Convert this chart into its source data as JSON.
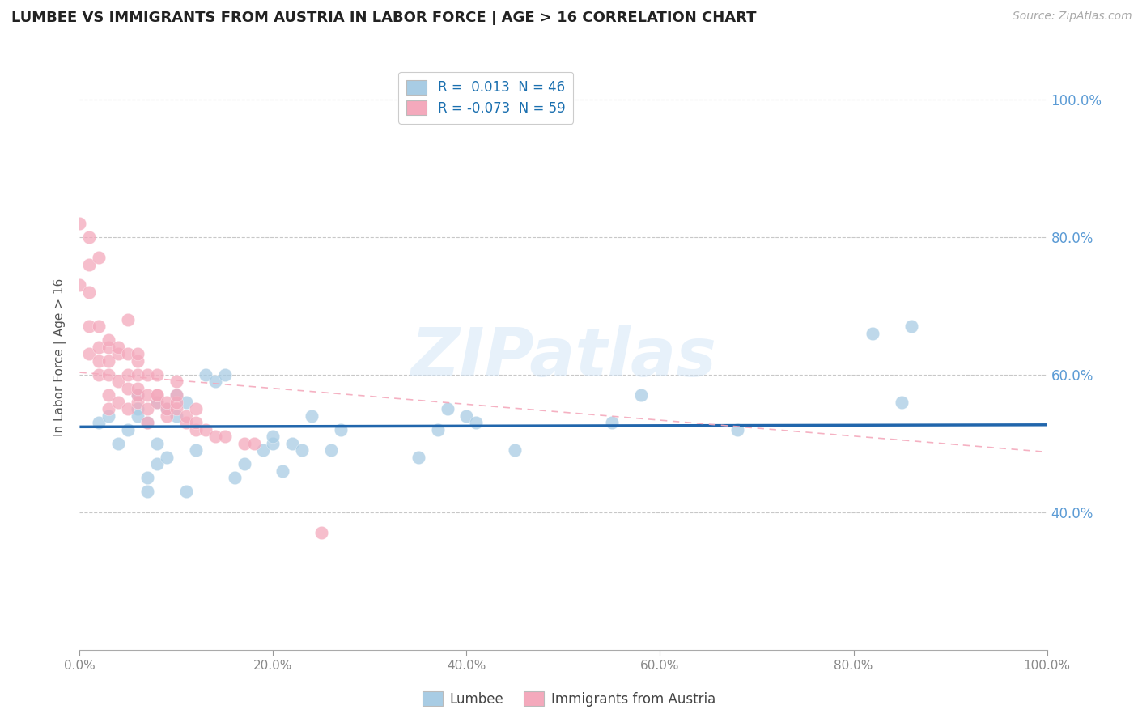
{
  "title": "LUMBEE VS IMMIGRANTS FROM AUSTRIA IN LABOR FORCE | AGE > 16 CORRELATION CHART",
  "source_text": "Source: ZipAtlas.com",
  "ylabel": "In Labor Force | Age > 16",
  "xlabel": "",
  "lumbee_R": 0.013,
  "lumbee_N": 46,
  "austria_R": -0.073,
  "austria_N": 59,
  "lumbee_color": "#a8cce4",
  "austria_color": "#f4a9bc",
  "lumbee_line_color": "#2166ac",
  "austria_line_color": "#f4a9bc",
  "background_color": "#ffffff",
  "grid_color": "#c8c8c8",
  "watermark": "ZIPatlas",
  "xlim": [
    0.0,
    1.0
  ],
  "ylim": [
    0.2,
    1.05
  ],
  "lumbee_x": [
    0.02,
    0.03,
    0.04,
    0.05,
    0.06,
    0.06,
    0.06,
    0.07,
    0.07,
    0.07,
    0.08,
    0.08,
    0.08,
    0.09,
    0.09,
    0.1,
    0.1,
    0.11,
    0.11,
    0.12,
    0.13,
    0.14,
    0.15,
    0.16,
    0.17,
    0.19,
    0.2,
    0.2,
    0.21,
    0.22,
    0.23,
    0.24,
    0.26,
    0.27,
    0.35,
    0.37,
    0.38,
    0.4,
    0.41,
    0.45,
    0.55,
    0.58,
    0.68,
    0.82,
    0.85,
    0.86
  ],
  "lumbee_y": [
    0.53,
    0.54,
    0.5,
    0.52,
    0.55,
    0.54,
    0.57,
    0.43,
    0.45,
    0.53,
    0.5,
    0.47,
    0.56,
    0.48,
    0.55,
    0.54,
    0.57,
    0.43,
    0.56,
    0.49,
    0.6,
    0.59,
    0.6,
    0.45,
    0.47,
    0.49,
    0.5,
    0.51,
    0.46,
    0.5,
    0.49,
    0.54,
    0.49,
    0.52,
    0.48,
    0.52,
    0.55,
    0.54,
    0.53,
    0.49,
    0.53,
    0.57,
    0.52,
    0.66,
    0.56,
    0.67
  ],
  "austria_x": [
    0.0,
    0.0,
    0.01,
    0.01,
    0.01,
    0.01,
    0.01,
    0.02,
    0.02,
    0.02,
    0.02,
    0.02,
    0.03,
    0.03,
    0.03,
    0.03,
    0.03,
    0.03,
    0.04,
    0.04,
    0.04,
    0.04,
    0.05,
    0.05,
    0.05,
    0.05,
    0.05,
    0.06,
    0.06,
    0.06,
    0.06,
    0.06,
    0.06,
    0.07,
    0.07,
    0.07,
    0.07,
    0.08,
    0.08,
    0.08,
    0.08,
    0.09,
    0.09,
    0.09,
    0.1,
    0.1,
    0.1,
    0.1,
    0.11,
    0.11,
    0.12,
    0.12,
    0.12,
    0.13,
    0.14,
    0.15,
    0.17,
    0.18,
    0.25
  ],
  "austria_y": [
    0.73,
    0.82,
    0.67,
    0.72,
    0.76,
    0.8,
    0.63,
    0.6,
    0.62,
    0.64,
    0.67,
    0.77,
    0.55,
    0.57,
    0.6,
    0.62,
    0.64,
    0.65,
    0.56,
    0.59,
    0.63,
    0.64,
    0.55,
    0.58,
    0.6,
    0.63,
    0.68,
    0.56,
    0.57,
    0.58,
    0.6,
    0.62,
    0.63,
    0.53,
    0.55,
    0.57,
    0.6,
    0.56,
    0.57,
    0.57,
    0.6,
    0.54,
    0.55,
    0.56,
    0.55,
    0.56,
    0.57,
    0.59,
    0.53,
    0.54,
    0.52,
    0.53,
    0.55,
    0.52,
    0.51,
    0.51,
    0.5,
    0.5,
    0.37
  ],
  "ytick_labels": [
    "40.0%",
    "60.0%",
    "80.0%",
    "100.0%"
  ],
  "ytick_values": [
    0.4,
    0.6,
    0.8,
    1.0
  ],
  "xtick_labels": [
    "0.0%",
    "20.0%",
    "40.0%",
    "60.0%",
    "80.0%",
    "100.0%"
  ],
  "xtick_values": [
    0.0,
    0.2,
    0.4,
    0.6,
    0.8,
    1.0
  ],
  "legend_R_lumbee": "R =  0.013",
  "legend_N_lumbee": "N = 46",
  "legend_R_austria": "R = -0.073",
  "legend_N_austria": "N = 59"
}
